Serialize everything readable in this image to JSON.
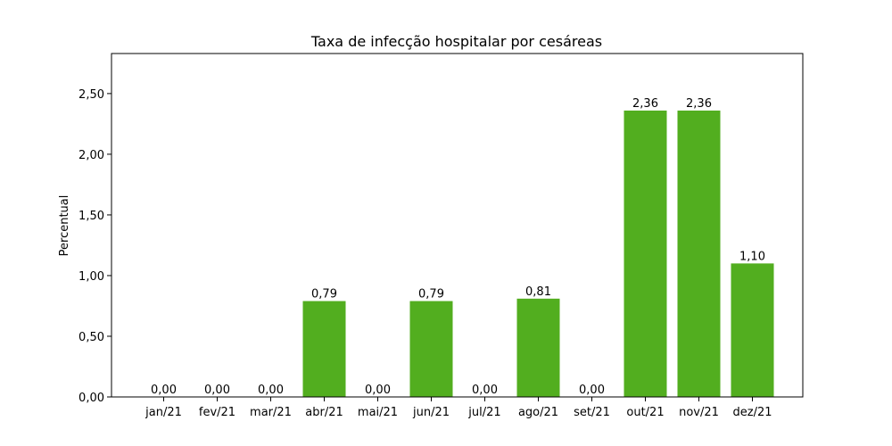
{
  "chart_data": {
    "type": "bar",
    "title": "Taxa de infecção hospitalar por cesáreas",
    "xlabel": "",
    "ylabel": "Percentual",
    "categories": [
      "jan/21",
      "fev/21",
      "mar/21",
      "abr/21",
      "mai/21",
      "jun/21",
      "jul/21",
      "ago/21",
      "set/21",
      "out/21",
      "nov/21",
      "dez/21"
    ],
    "values": [
      0,
      0,
      0,
      0.79,
      0,
      0.79,
      0,
      0.81,
      0,
      2.36,
      2.36,
      1.1
    ],
    "value_labels": [
      "0,00",
      "0,00",
      "0,00",
      "0,79",
      "0,00",
      "0,79",
      "0,00",
      "0,81",
      "0,00",
      "2,36",
      "2,36",
      "1,10"
    ],
    "ylim": [
      0,
      2.83
    ],
    "yticks": [
      0,
      0.5,
      1.0,
      1.5,
      2.0,
      2.5
    ],
    "ytick_labels": [
      "0,00",
      "0,50",
      "1,00",
      "1,50",
      "2,00",
      "2,50"
    ],
    "bar_color": "#52ae1f",
    "grid": false,
    "legend": "none"
  }
}
